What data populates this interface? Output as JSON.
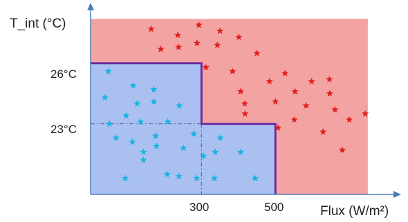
{
  "chart_data": {
    "type": "scatter",
    "title": "",
    "xlabel": "Flux (W/m²)",
    "ylabel": "T_int (°C)",
    "x_ticks": [
      {
        "value": 300,
        "label": "300"
      },
      {
        "value": 500,
        "label": "500"
      }
    ],
    "y_ticks": [
      {
        "value": 23,
        "label": "23°C"
      },
      {
        "value": 26,
        "label": "26°C"
      }
    ],
    "xlim": [
      0,
      840
    ],
    "ylim": [
      19.5,
      29
    ],
    "grid": false,
    "regions": [
      {
        "kind": "background",
        "color": "#F4A3A3",
        "x": [
          0,
          750
        ],
        "y": [
          19.5,
          28.2
        ]
      },
      {
        "kind": "comfort-zone",
        "color": "#A9C0F0",
        "border_color": "#6A2EA0",
        "polygon": [
          [
            0,
            26
          ],
          [
            300,
            26
          ],
          [
            300,
            23
          ],
          [
            500,
            23
          ],
          [
            500,
            19.5
          ],
          [
            0,
            19.5
          ]
        ]
      }
    ],
    "reference_lines": [
      {
        "axis": "x",
        "value": 300,
        "style": "dash-dot",
        "color": "#4E5C8A"
      },
      {
        "axis": "y",
        "value": 23,
        "style": "dash-dot",
        "color": "#4E5C8A"
      }
    ],
    "series": [
      {
        "color": "#17B4E0",
        "marker": "star",
        "points": [
          [
            48,
            25.6
          ],
          [
            115,
            24.9
          ],
          [
            171,
            24.7
          ],
          [
            39,
            24.3
          ],
          [
            126,
            24.0
          ],
          [
            171,
            24.1
          ],
          [
            240,
            23.9
          ],
          [
            96,
            23.4
          ],
          [
            51,
            23.0
          ],
          [
            135,
            23.1
          ],
          [
            209,
            23.1
          ],
          [
            351,
            22.3
          ],
          [
            69,
            22.3
          ],
          [
            113,
            22.1
          ],
          [
            176,
            22.4
          ],
          [
            279,
            22.5
          ],
          [
            178,
            21.9
          ],
          [
            251,
            21.8
          ],
          [
            337,
            21.6
          ],
          [
            406,
            21.6
          ],
          [
            143,
            21.6
          ],
          [
            305,
            21.4
          ],
          [
            143,
            21.2
          ],
          [
            207,
            20.5
          ],
          [
            94,
            20.3
          ],
          [
            239,
            20.4
          ],
          [
            287,
            20.3
          ],
          [
            335,
            20.3
          ],
          [
            445,
            20.3
          ]
        ]
      },
      {
        "color": "#E0201E",
        "marker": "star",
        "points": [
          [
            164,
            27.7
          ],
          [
            293,
            27.9
          ],
          [
            350,
            27.6
          ],
          [
            236,
            27.4
          ],
          [
            401,
            27.3
          ],
          [
            238,
            26.8
          ],
          [
            288,
            27.0
          ],
          [
            343,
            26.9
          ],
          [
            190,
            26.7
          ],
          [
            450,
            26.5
          ],
          [
            312,
            25.8
          ],
          [
            384,
            25.6
          ],
          [
            526,
            25.5
          ],
          [
            598,
            25.1
          ],
          [
            646,
            25.2
          ],
          [
            484,
            25.1
          ],
          [
            406,
            24.6
          ],
          [
            553,
            24.6
          ],
          [
            647,
            24.5
          ],
          [
            417,
            24.0
          ],
          [
            500,
            24.1
          ],
          [
            583,
            23.9
          ],
          [
            661,
            23.7
          ],
          [
            743,
            23.5
          ],
          [
            418,
            23.5
          ],
          [
            551,
            23.2
          ],
          [
            700,
            23.2
          ],
          [
            507,
            22.8
          ],
          [
            629,
            22.6
          ],
          [
            681,
            21.7
          ]
        ]
      }
    ]
  }
}
